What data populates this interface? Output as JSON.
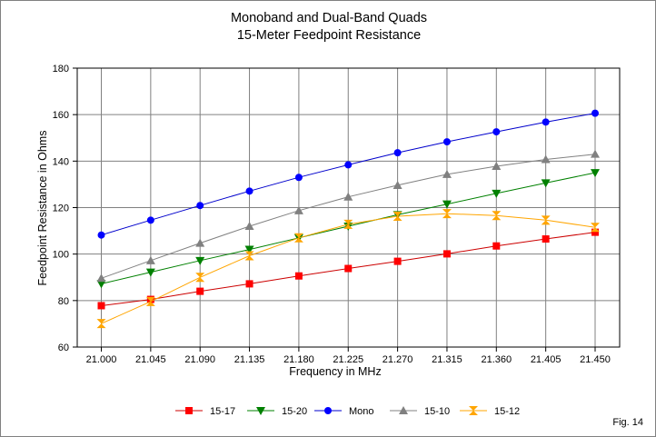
{
  "chart_data": {
    "type": "line",
    "title_lines": [
      "Monoband and Dual-Band Quads",
      "15-Meter Feedpoint Resistance"
    ],
    "xlabel": "Frequency in MHz",
    "ylabel": "Feedpoint Resistance in Ohms",
    "x": [
      21.0,
      21.045,
      21.09,
      21.135,
      21.18,
      21.225,
      21.27,
      21.315,
      21.36,
      21.405,
      21.45
    ],
    "x_tick_labels": [
      "21.000",
      "21.045",
      "21.090",
      "21.135",
      "21.180",
      "21.225",
      "21.270",
      "21.315",
      "21.360",
      "21.405",
      "21.450"
    ],
    "y_ticks": [
      60,
      80,
      100,
      120,
      140,
      160,
      180
    ],
    "ylim": [
      60,
      180
    ],
    "grid": true,
    "legend_position": "bottom",
    "series": [
      {
        "name": "15-17",
        "color": "#ff0000",
        "line_color": "#cc0000",
        "marker": "square",
        "values": [
          77.8,
          80.5,
          84,
          87.2,
          90.6,
          93.8,
          96.9,
          100.1,
          103.5,
          106.5,
          109.4
        ]
      },
      {
        "name": "15-20",
        "color": "#008000",
        "line_color": "#008000",
        "marker": "triangle-down",
        "values": [
          87.2,
          92.2,
          97.2,
          102,
          107,
          112,
          116.9,
          121.5,
          126.1,
          130.6,
          135
        ]
      },
      {
        "name": "Mono",
        "color": "#0000ff",
        "line_color": "#0000cc",
        "marker": "circle",
        "values": [
          108.2,
          114.6,
          120.9,
          127.1,
          133,
          138.4,
          143.6,
          148.3,
          152.6,
          156.8,
          160.6
        ]
      },
      {
        "name": "15-10",
        "color": "#808080",
        "line_color": "#808080",
        "marker": "triangle-up",
        "values": [
          89.6,
          97.2,
          104.7,
          112,
          118.7,
          124.6,
          129.6,
          134.3,
          137.8,
          140.7,
          143
        ]
      },
      {
        "name": "15-12",
        "color": "#ffa500",
        "line_color": "#ffa500",
        "marker": "bowtie",
        "values": [
          70.1,
          79.6,
          90,
          99.3,
          107,
          112.8,
          116.3,
          117.4,
          116.6,
          114.6,
          111.5
        ]
      }
    ]
  },
  "figure_label": "Fig. 14"
}
